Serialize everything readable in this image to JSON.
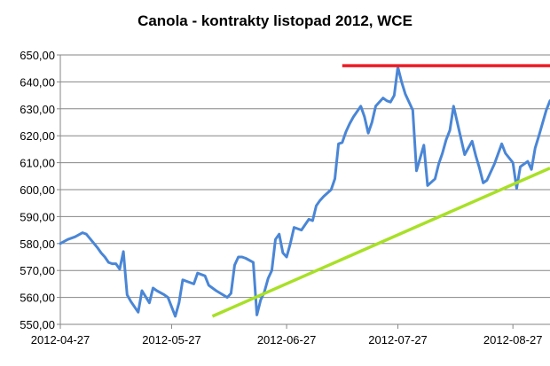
{
  "chart_data": {
    "type": "line",
    "title": "Canola - kontrakty listopad 2012, WCE",
    "xlabel": "",
    "ylabel": "",
    "ylim": [
      550,
      650
    ],
    "y_ticks": [
      "550,00",
      "560,00",
      "570,00",
      "580,00",
      "590,00",
      "600,00",
      "610,00",
      "620,00",
      "630,00",
      "640,00",
      "650,00"
    ],
    "x_ticks": [
      {
        "label": "2012-04-27",
        "date": "2012-04-27"
      },
      {
        "label": "2012-05-27",
        "date": "2012-05-27"
      },
      {
        "label": "2012-06-27",
        "date": "2012-06-27"
      },
      {
        "label": "2012-07-27",
        "date": "2012-07-27"
      },
      {
        "label": "2012-08-27",
        "date": "2012-08-27"
      }
    ],
    "x_range": [
      "2012-04-27",
      "2012-09-06"
    ],
    "grid": true,
    "legend": "none",
    "series": [
      {
        "color": "#4a86d6",
        "x": [
          "2012-04-27",
          "2012-04-29",
          "2012-05-01",
          "2012-05-03",
          "2012-05-04",
          "2012-05-07",
          "2012-05-08",
          "2012-05-09",
          "2012-05-10",
          "2012-05-11",
          "2012-05-12",
          "2012-05-13",
          "2012-05-14",
          "2012-05-15",
          "2012-05-16",
          "2012-05-17",
          "2012-05-18",
          "2012-05-19",
          "2012-05-21",
          "2012-05-22",
          "2012-05-23",
          "2012-05-25",
          "2012-05-26",
          "2012-05-28",
          "2012-05-29",
          "2012-05-30",
          "2012-06-01",
          "2012-06-02",
          "2012-06-03",
          "2012-06-05",
          "2012-06-06",
          "2012-06-07",
          "2012-06-08",
          "2012-06-11",
          "2012-06-12",
          "2012-06-13",
          "2012-06-14",
          "2012-06-15",
          "2012-06-16",
          "2012-06-18",
          "2012-06-19",
          "2012-06-20",
          "2012-06-21",
          "2012-06-22",
          "2012-06-23",
          "2012-06-24",
          "2012-06-25",
          "2012-06-26",
          "2012-06-27",
          "2012-06-28",
          "2012-06-29",
          "2012-07-01",
          "2012-07-03",
          "2012-07-04",
          "2012-07-05",
          "2012-07-06",
          "2012-07-07",
          "2012-07-09",
          "2012-07-10",
          "2012-07-11",
          "2012-07-12",
          "2012-07-13",
          "2012-07-14",
          "2012-07-15",
          "2012-07-17",
          "2012-07-18",
          "2012-07-19",
          "2012-07-20",
          "2012-07-21",
          "2012-07-23",
          "2012-07-24",
          "2012-07-25",
          "2012-07-26",
          "2012-07-27",
          "2012-07-28",
          "2012-07-29",
          "2012-07-31",
          "2012-08-01",
          "2012-08-03",
          "2012-08-04",
          "2012-08-06",
          "2012-08-07",
          "2012-08-08",
          "2012-08-09",
          "2012-08-10",
          "2012-08-11",
          "2012-08-14",
          "2012-08-16",
          "2012-08-17",
          "2012-08-18",
          "2012-08-19",
          "2012-08-20",
          "2012-08-22",
          "2012-08-24",
          "2012-08-25",
          "2012-08-27",
          "2012-08-28",
          "2012-08-29",
          "2012-08-31",
          "2012-09-01",
          "2012-09-02",
          "2012-09-03",
          "2012-09-05",
          "2012-09-06"
        ],
        "y": [
          580.0,
          581.5,
          582.5,
          584.0,
          583.5,
          578.5,
          576.5,
          575.0,
          573.0,
          572.5,
          572.5,
          570.5,
          577.0,
          561.0,
          558.5,
          556.5,
          554.5,
          562.5,
          558.0,
          563.5,
          562.5,
          561.0,
          560.0,
          553.0,
          558.0,
          566.5,
          565.5,
          565.0,
          569.0,
          568.0,
          564.5,
          563.5,
          562.5,
          560.0,
          561.5,
          572.0,
          575.0,
          575.0,
          574.5,
          573.0,
          553.5,
          559.0,
          562.0,
          567.0,
          570.0,
          581.5,
          583.5,
          576.5,
          575.0,
          580.0,
          586.0,
          585.0,
          589.0,
          588.5,
          594.0,
          596.0,
          597.5,
          600.0,
          604.0,
          617.0,
          617.5,
          621.5,
          624.5,
          627.0,
          631.0,
          627.0,
          621.0,
          625.0,
          631.0,
          634.0,
          633.0,
          632.5,
          635.0,
          645.5,
          640.0,
          635.5,
          629.5,
          607.0,
          616.5,
          601.5,
          604.0,
          609.5,
          613.5,
          618.5,
          622.0,
          631.0,
          613.0,
          618.0,
          612.5,
          608.0,
          602.5,
          603.5,
          609.5,
          617.0,
          613.5,
          610.0,
          600.5,
          608.5,
          610.5,
          607.5,
          615.5,
          620.0,
          629.5,
          633.0
        ]
      }
    ],
    "trend_lines": [
      {
        "color": "#ed1c24",
        "x": [
          "2012-07-12",
          "2012-09-06"
        ],
        "y": [
          646.0,
          646.0
        ]
      },
      {
        "color": "#a8e026",
        "x": [
          "2012-06-07",
          "2012-09-06"
        ],
        "y": [
          553.0,
          608.0
        ]
      }
    ]
  }
}
